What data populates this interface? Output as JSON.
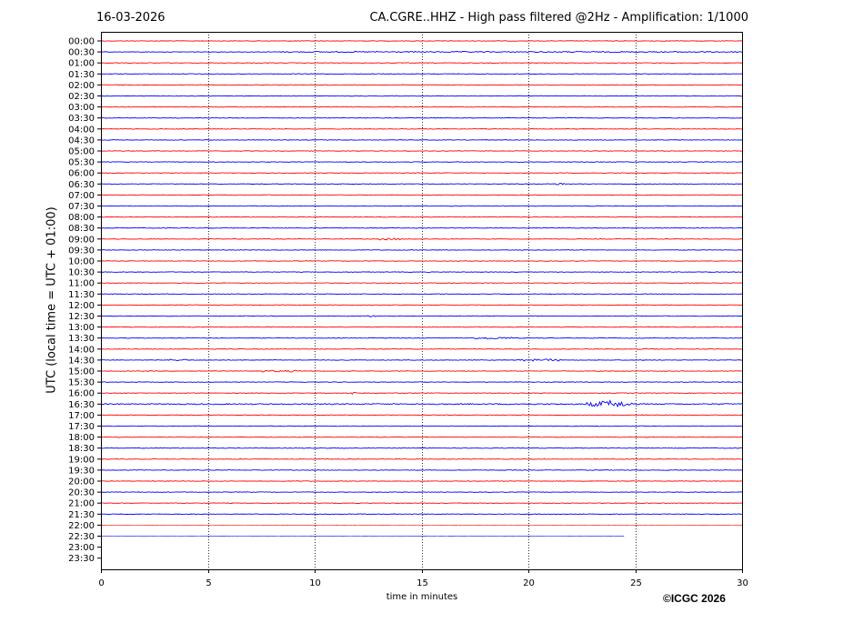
{
  "header": {
    "date": "16-03-2026",
    "title": "CA.CGRE..HHZ - High pass filtered @2Hz - Amplification: 1/1000"
  },
  "footer": {
    "xlabel": "time in minutes",
    "copyright": "©ICGC 2026"
  },
  "chart_data": {
    "type": "line",
    "title": "CA.CGRE..HHZ - High pass filtered @2Hz - Amplification: 1/1000",
    "xlabel": "time in minutes",
    "ylabel": "UTC (local time = UTC + 01:00)",
    "xlim": [
      0,
      30
    ],
    "x_ticks": [
      0,
      5,
      10,
      15,
      20,
      25,
      30
    ],
    "x_grid": "dotted vertical lines at x ticks",
    "row_labels": [
      "00:00",
      "00:30",
      "01:00",
      "01:30",
      "02:00",
      "02:30",
      "03:00",
      "03:30",
      "04:00",
      "04:30",
      "05:00",
      "05:30",
      "06:00",
      "06:30",
      "07:00",
      "07:30",
      "08:00",
      "08:30",
      "09:00",
      "09:30",
      "10:00",
      "10:30",
      "11:00",
      "11:30",
      "12:00",
      "12:30",
      "13:00",
      "13:30",
      "14:00",
      "14:30",
      "15:00",
      "15:30",
      "16:00",
      "16:30",
      "17:00",
      "17:30",
      "18:00",
      "18:30",
      "19:00",
      "19:30",
      "20:00",
      "20:30",
      "21:00",
      "21:30",
      "22:00",
      "22:30",
      "23:00",
      "23:30"
    ],
    "trace_colors": [
      "#ff0000",
      "#0000ff"
    ],
    "last_trace_row": "22:30",
    "last_trace_end_minutes": 24.5,
    "noise_level": 0.3,
    "events": [
      {
        "row": "00:30",
        "start": 8.5,
        "end": 30,
        "amp": 0.6
      },
      {
        "row": "06:30",
        "start": 21.2,
        "end": 21.7,
        "amp": 1.2
      },
      {
        "row": "09:00",
        "start": 13.0,
        "end": 14.0,
        "amp": 1.0
      },
      {
        "row": "12:30",
        "start": 12.4,
        "end": 12.9,
        "amp": 0.9
      },
      {
        "row": "13:30",
        "start": 17.5,
        "end": 19.2,
        "amp": 1.0
      },
      {
        "row": "14:00",
        "start": 25.0,
        "end": 26.0,
        "amp": 0.8
      },
      {
        "row": "14:30",
        "start": 3.2,
        "end": 4.0,
        "amp": 1.0
      },
      {
        "row": "14:30",
        "start": 19.5,
        "end": 21.5,
        "amp": 1.1
      },
      {
        "row": "15:00",
        "start": 7.5,
        "end": 9.5,
        "amp": 0.9
      },
      {
        "row": "16:00",
        "start": 11.7,
        "end": 12.0,
        "amp": 1.3
      },
      {
        "row": "16:30",
        "start": 22.6,
        "end": 25.0,
        "amp": 4.0
      },
      {
        "row": "16:30",
        "start": 0.0,
        "end": 30,
        "amp": 0.6
      }
    ]
  }
}
